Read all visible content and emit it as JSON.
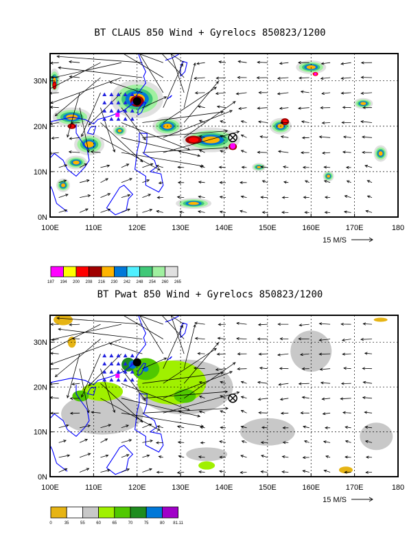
{
  "chart_data": [
    {
      "type": "heatmap",
      "title": "BT CLAUS 850 Wind + Gyrelocs 850823/1200",
      "x_ticks": [
        "100E",
        "110E",
        "120E",
        "130E",
        "140E",
        "150E",
        "160E",
        "170E",
        "180"
      ],
      "y_ticks": [
        "0N",
        "10N",
        "20N",
        "30N"
      ],
      "xlim": [
        100,
        180
      ],
      "ylim": [
        0,
        36
      ],
      "grid": true,
      "reference_vector": "15 M/S",
      "colorbar": {
        "levels": [
          "187",
          "194",
          "200",
          "208",
          "216",
          "230",
          "242",
          "248",
          "254",
          "260",
          "265"
        ],
        "colors": [
          "#ff00ff",
          "#ffff00",
          "#ff0000",
          "#a00000",
          "#ffb400",
          "#0078d8",
          "#50f0ff",
          "#40c878",
          "#a0f0a0",
          "#e0e0e0"
        ]
      },
      "markers": {
        "black_dot": [
          120,
          25.5
        ],
        "circle_x": [
          142,
          17.5
        ],
        "magenta_points": [
          [
            115.5,
            22.5
          ],
          [
            142,
            15.8
          ]
        ],
        "blue_triangles_center": [
          116.5,
          24
        ]
      }
    },
    {
      "type": "heatmap",
      "title": "BT Pwat 850 Wind + Gyrelocs 850823/1200",
      "x_ticks": [
        "100E",
        "110E",
        "120E",
        "130E",
        "140E",
        "150E",
        "160E",
        "170E",
        "180"
      ],
      "y_ticks": [
        "0N",
        "10N",
        "20N",
        "30N"
      ],
      "xlim": [
        100,
        180
      ],
      "ylim": [
        0,
        36
      ],
      "grid": true,
      "reference_vector": "15 M/S",
      "colorbar": {
        "levels": [
          "0",
          "35",
          "55",
          "60",
          "65",
          "70",
          "75",
          "80",
          "81.11"
        ],
        "colors": [
          "#e6b414",
          "#ffffff",
          "#c8c8c8",
          "#a0f000",
          "#50c800",
          "#1e8c1e",
          "#0078d8",
          "#a000c8"
        ]
      },
      "markers": {
        "black_dot": [
          120,
          25.5
        ],
        "circle_x": [
          142,
          17.5
        ],
        "magenta_points": [
          [
            115.5,
            22.5
          ]
        ],
        "blue_triangles_center": [
          116.5,
          24
        ]
      }
    }
  ]
}
